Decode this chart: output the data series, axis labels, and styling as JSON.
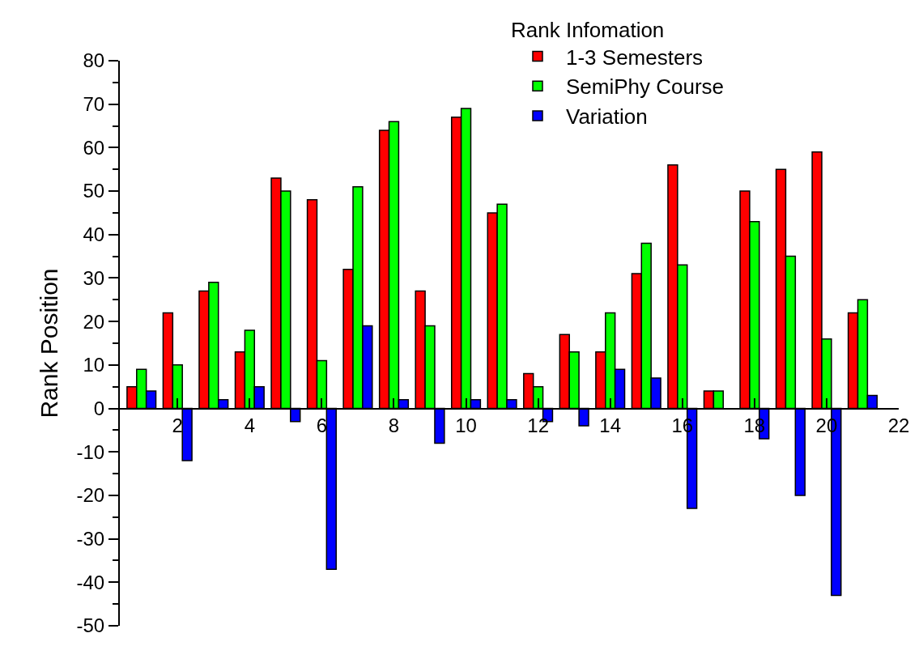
{
  "chart_data": {
    "type": "bar",
    "ylabel": "Rank Position",
    "legend_title": "Rank Infomation",
    "legend": "top right",
    "grid": false,
    "x": [
      1,
      2,
      3,
      4,
      5,
      6,
      7,
      8,
      9,
      10,
      11,
      12,
      13,
      14,
      15,
      16,
      17,
      18,
      19,
      20,
      21
    ],
    "series": [
      {
        "name": "1-3 Semesters",
        "color": "#ff0000",
        "values": [
          5,
          22,
          27,
          13,
          53,
          48,
          32,
          64,
          27,
          67,
          45,
          8,
          17,
          13,
          31,
          56,
          4,
          50,
          55,
          59,
          22
        ]
      },
      {
        "name": "SemiPhy Course",
        "color": "#00ff00",
        "values": [
          9,
          10,
          29,
          18,
          50,
          11,
          51,
          66,
          19,
          69,
          47,
          5,
          13,
          22,
          38,
          33,
          4,
          43,
          35,
          16,
          25
        ]
      },
      {
        "name": "Variation",
        "color": "#0000ff",
        "values": [
          4,
          -12,
          2,
          5,
          -3,
          -37,
          19,
          2,
          -8,
          2,
          2,
          -3,
          -4,
          9,
          7,
          -23,
          0,
          -7,
          -20,
          -43,
          3
        ]
      }
    ],
    "xlim": [
      0.4,
      22
    ],
    "xticks": [
      2,
      4,
      6,
      8,
      10,
      12,
      14,
      16,
      18,
      20,
      22
    ],
    "ylim": [
      -50,
      80
    ],
    "yticks": [
      -50,
      -40,
      -30,
      -20,
      -10,
      0,
      10,
      20,
      30,
      40,
      50,
      60,
      70,
      80
    ]
  }
}
